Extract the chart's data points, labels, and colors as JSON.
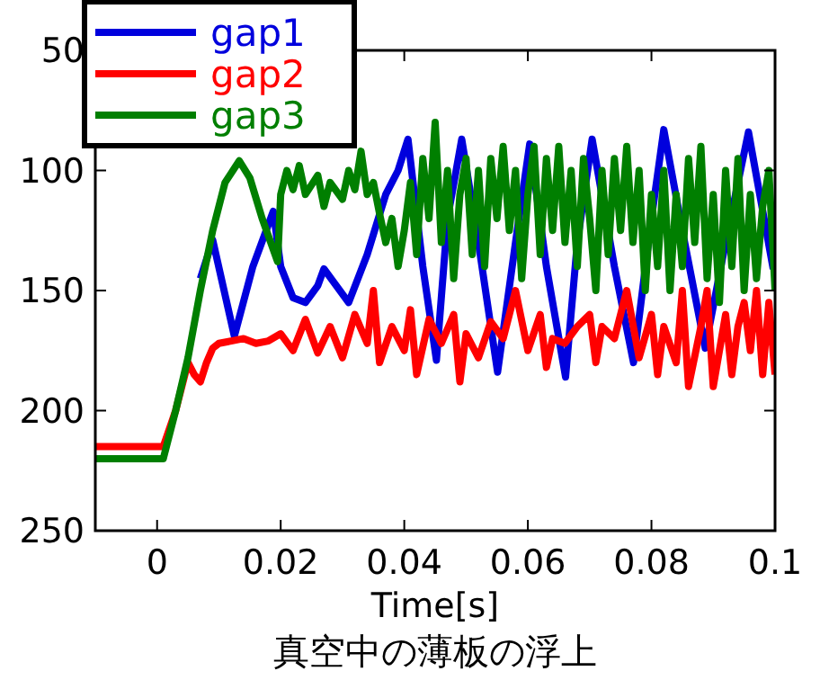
{
  "chart_data": {
    "type": "line",
    "title": "真空中の薄板の浮上",
    "xlabel": "Time[s]",
    "xlim": [
      -0.01,
      0.1
    ],
    "xticks": [
      0,
      {
        "value": 0.02,
        "label": "0.02"
      },
      {
        "value": 0.04,
        "label": "0.04"
      },
      {
        "value": 0.06,
        "label": "0.06"
      },
      {
        "value": 0.08,
        "label": "0.08"
      },
      {
        "value": 0.1,
        "label": "0.1"
      }
    ],
    "ylim": [
      250,
      50
    ],
    "yticks": [
      50,
      100,
      150,
      200,
      250
    ],
    "grid": false,
    "legend": "top left",
    "series": [
      {
        "name": "gap1",
        "color": "#0000dd",
        "x": [
          0.007,
          0.009,
          0.0125,
          0.0155,
          0.0188,
          0.02,
          0.022,
          0.024,
          0.026,
          0.027,
          0.029,
          0.031,
          0.034,
          0.037,
          0.039,
          0.0406,
          0.043,
          0.0452,
          0.047,
          0.0493,
          0.052,
          0.0551,
          0.058,
          0.0603,
          0.063,
          0.0661,
          0.068,
          0.0704,
          0.074,
          0.0771,
          0.08,
          0.082,
          0.085,
          0.0887,
          0.092,
          0.0957,
          0.0997
        ],
        "values": [
          145,
          129,
          169,
          140,
          117,
          140,
          153,
          155,
          148,
          141,
          148,
          155,
          135,
          110,
          100,
          87,
          140,
          179,
          120,
          87,
          130,
          184,
          130,
          89,
          140,
          186,
          130,
          87,
          140,
          180,
          120,
          83,
          125,
          174,
          130,
          84,
          141
        ]
      },
      {
        "name": "gap2",
        "color": "#ff0000",
        "x": [
          -0.01,
          0.001,
          0.003,
          0.005,
          0.006,
          0.007,
          0.008,
          0.009,
          0.01,
          0.012,
          0.014,
          0.016,
          0.018,
          0.02,
          0.022,
          0.024,
          0.026,
          0.028,
          0.03,
          0.032,
          0.034,
          0.035,
          0.036,
          0.038,
          0.04,
          0.041,
          0.042,
          0.044,
          0.046,
          0.048,
          0.049,
          0.05,
          0.052,
          0.054,
          0.056,
          0.058,
          0.06,
          0.062,
          0.063,
          0.064,
          0.066,
          0.068,
          0.07,
          0.071,
          0.072,
          0.074,
          0.076,
          0.078,
          0.08,
          0.081,
          0.082,
          0.084,
          0.085,
          0.086,
          0.088,
          0.089,
          0.09,
          0.092,
          0.093,
          0.094,
          0.095,
          0.096,
          0.097,
          0.098,
          0.099,
          0.1
        ],
        "values": [
          215,
          215,
          200,
          180,
          185,
          188,
          180,
          174,
          172,
          171,
          170,
          172,
          171,
          168,
          175,
          162,
          176,
          165,
          178,
          160,
          172,
          150,
          180,
          165,
          175,
          158,
          185,
          162,
          172,
          160,
          188,
          168,
          178,
          163,
          170,
          150,
          175,
          160,
          182,
          170,
          172,
          165,
          160,
          180,
          165,
          170,
          150,
          178,
          160,
          185,
          165,
          180,
          150,
          190,
          165,
          150,
          190,
          160,
          185,
          165,
          155,
          175,
          150,
          185,
          155,
          185
        ]
      },
      {
        "name": "gap3",
        "color": "#007f00",
        "x": [
          -0.01,
          0.001,
          0.003,
          0.005,
          0.007,
          0.009,
          0.011,
          0.0133,
          0.015,
          0.017,
          0.0195,
          0.02,
          0.021,
          0.022,
          0.023,
          0.024,
          0.026,
          0.027,
          0.028,
          0.03,
          0.031,
          0.032,
          0.033,
          0.034,
          0.035,
          0.036,
          0.037,
          0.038,
          0.039,
          0.04,
          0.041,
          0.042,
          0.043,
          0.044,
          0.045,
          0.046,
          0.047,
          0.048,
          0.049,
          0.05,
          0.051,
          0.052,
          0.053,
          0.054,
          0.055,
          0.056,
          0.057,
          0.058,
          0.059,
          0.06,
          0.061,
          0.062,
          0.063,
          0.064,
          0.065,
          0.066,
          0.067,
          0.068,
          0.069,
          0.07,
          0.071,
          0.072,
          0.073,
          0.074,
          0.075,
          0.076,
          0.077,
          0.078,
          0.079,
          0.08,
          0.081,
          0.082,
          0.083,
          0.084,
          0.085,
          0.086,
          0.087,
          0.088,
          0.089,
          0.09,
          0.091,
          0.092,
          0.093,
          0.094,
          0.095,
          0.096,
          0.097,
          0.098,
          0.099,
          0.1
        ],
        "values": [
          220,
          220,
          200,
          178,
          150,
          125,
          105,
          96,
          103,
          120,
          138,
          110,
          100,
          108,
          98,
          110,
          102,
          115,
          105,
          112,
          100,
          108,
          92,
          110,
          105,
          118,
          130,
          120,
          140,
          125,
          105,
          135,
          95,
          120,
          80,
          130,
          100,
          145,
          110,
          95,
          135,
          100,
          140,
          95,
          120,
          90,
          125,
          100,
          145,
          110,
          90,
          135,
          95,
          125,
          90,
          130,
          100,
          140,
          95,
          120,
          150,
          100,
          135,
          95,
          125,
          90,
          130,
          100,
          150,
          110,
          140,
          100,
          150,
          110,
          140,
          95,
          130,
          90,
          145,
          110,
          155,
          100,
          140,
          95,
          150,
          110,
          145,
          115,
          100,
          150
        ]
      }
    ]
  }
}
